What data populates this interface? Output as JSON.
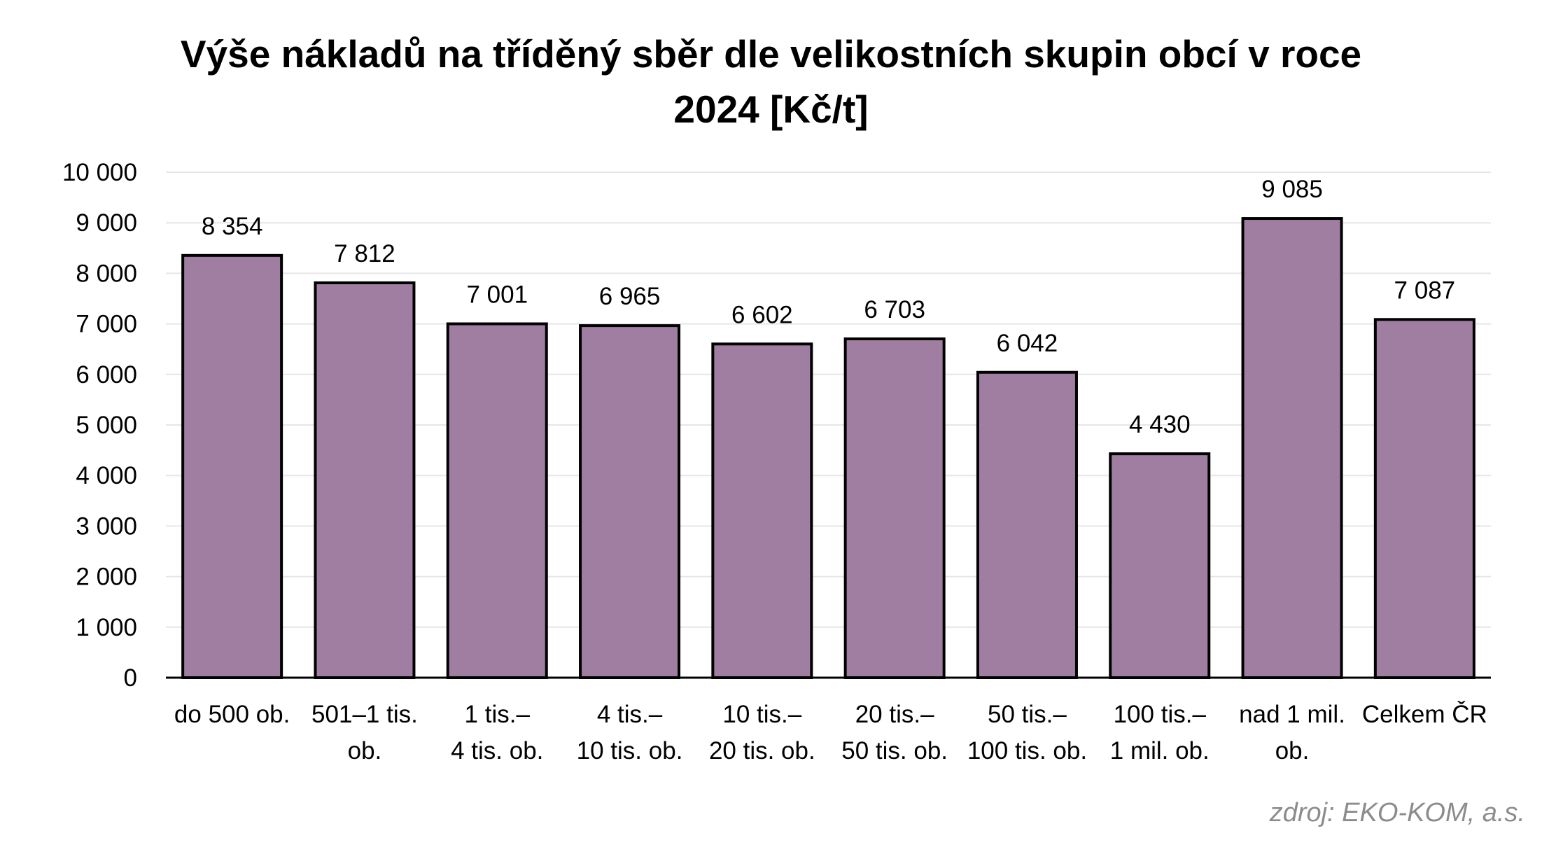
{
  "chart_data": {
    "type": "bar",
    "title_lines": [
      "Výše nákladů na tříděný sběr dle velikostních skupin obcí v roce",
      "2024 [Kč/t]"
    ],
    "categories": [
      [
        "do 500 ob."
      ],
      [
        "501–1 tis.",
        "ob."
      ],
      [
        "1 tis.–",
        "4 tis. ob."
      ],
      [
        "4 tis.–",
        "10 tis. ob."
      ],
      [
        "10 tis.–",
        "20 tis. ob."
      ],
      [
        "20 tis.–",
        "50 tis. ob."
      ],
      [
        "50 tis.–",
        "100 tis. ob."
      ],
      [
        "100 tis.–",
        "1 mil. ob."
      ],
      [
        "nad 1 mil.",
        "ob."
      ],
      [
        "Celkem ČR"
      ]
    ],
    "values": [
      8354,
      7812,
      7001,
      6965,
      6602,
      6703,
      6042,
      4430,
      9085,
      7087
    ],
    "value_labels": [
      "8 354",
      "7 812",
      "7 001",
      "6 965",
      "6 602",
      "6 703",
      "6 042",
      "4 430",
      "9 085",
      "7 087"
    ],
    "ylim": [
      0,
      10000
    ],
    "y_ticks": [
      0,
      1000,
      2000,
      3000,
      4000,
      5000,
      6000,
      7000,
      8000,
      9000,
      10000
    ],
    "y_tick_labels": [
      "0",
      "1 000",
      "2 000",
      "3 000",
      "4 000",
      "5 000",
      "6 000",
      "7 000",
      "8 000",
      "9 000",
      "10 000"
    ],
    "grid": true,
    "legend": "none",
    "xlabel": "",
    "ylabel": "",
    "colors": {
      "bar_fill": "#a07ea2",
      "bar_stroke": "#000000",
      "gridline": "#e6e6e6",
      "axis": "#000000"
    }
  },
  "source": "zdroj: EKO-KOM, a.s."
}
